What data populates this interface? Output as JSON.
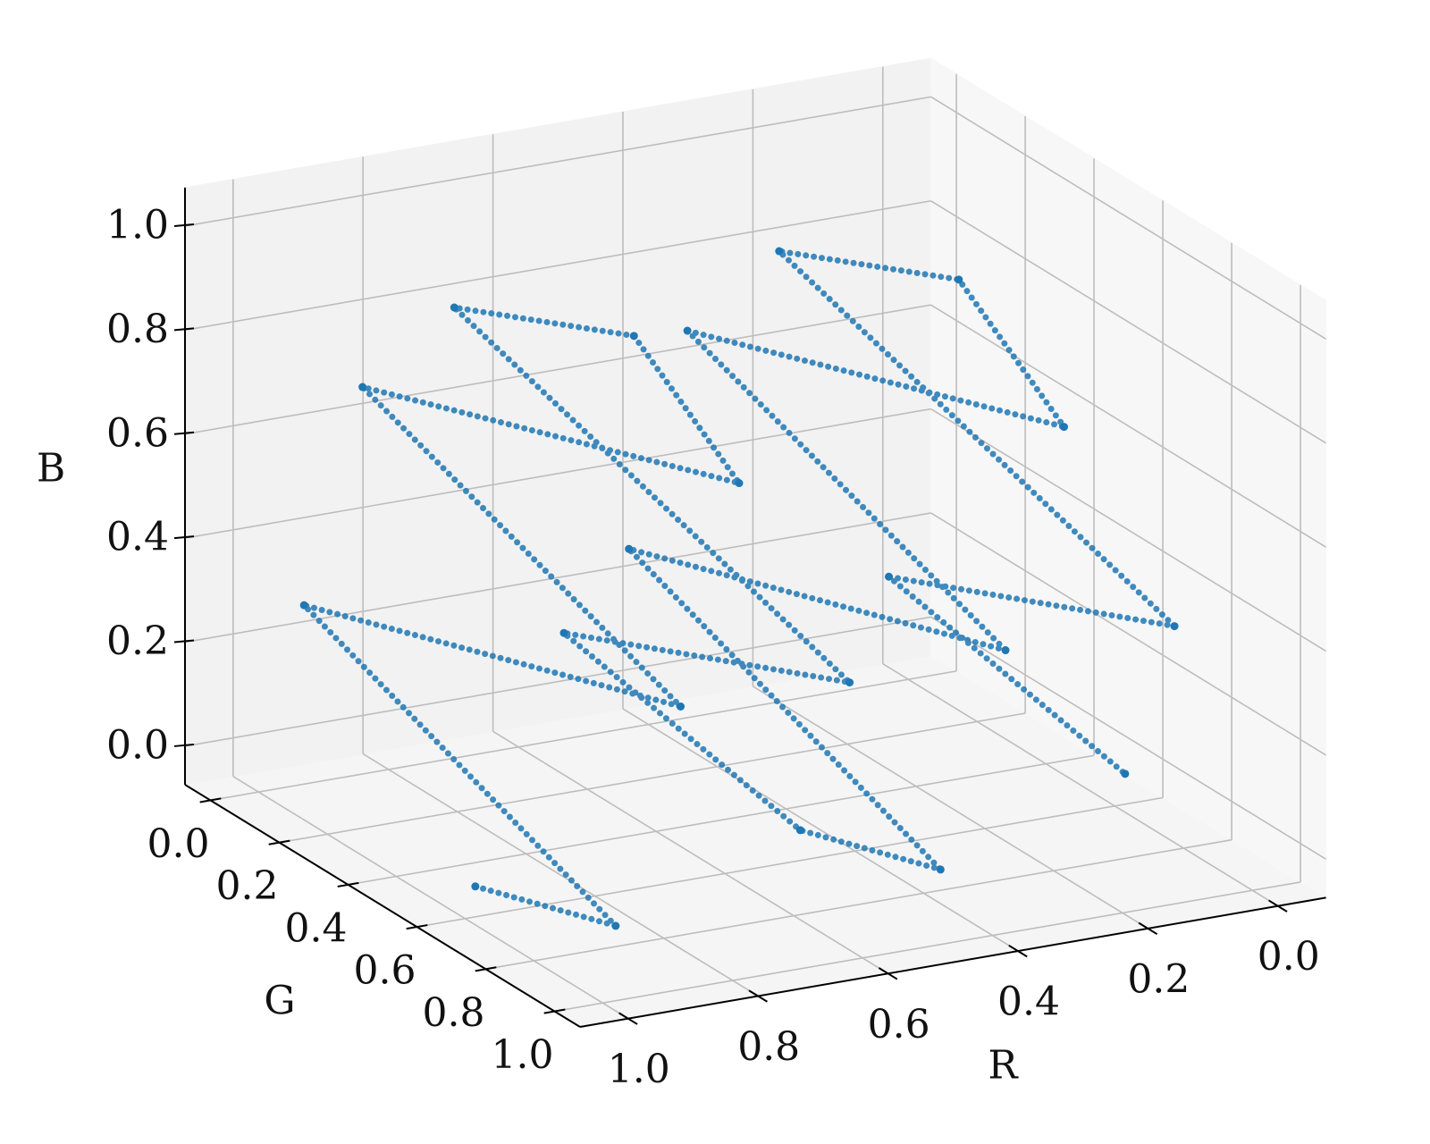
{
  "chart_data": {
    "type": "scatter3d",
    "xlabel": "R",
    "ylabel": "G",
    "zlabel": "B",
    "color": "#1f77b4",
    "grid": true,
    "x": [
      1.0,
      0.98,
      0.93,
      0.88,
      0.84,
      0.79,
      0.74,
      0.9,
      0.62,
      0.53,
      0.5,
      0.48,
      0.43,
      0.38,
      0.34,
      0.29,
      0.24,
      0.4,
      0.12,
      0.03,
      0.0
    ],
    "y": [
      0.63,
      1.0,
      0.0,
      1.0,
      0.0,
      1.0,
      0.6,
      0.38,
      1.0,
      0.0,
      0.63,
      1.0,
      0.0,
      1.0,
      0.0,
      1.0,
      0.6,
      0.38,
      1.0,
      0.0,
      0.63
    ],
    "z": [
      0.0,
      0.07,
      0.27,
      0.47,
      0.67,
      0.88,
      0.99,
      0.99,
      0.46,
      0.13,
      0.0,
      0.07,
      0.27,
      0.47,
      0.67,
      0.88,
      0.99,
      0.99,
      0.46,
      0.13,
      0.0
    ],
    "xlim": [
      -0.074,
      1.074
    ],
    "ylim": [
      -0.074,
      1.074
    ],
    "zlim": [
      -0.074,
      1.074
    ],
    "xticks": [
      {
        "value": 0,
        "label": "0.0"
      },
      0.2,
      0.4,
      0.6,
      0.8,
      {
        "value": 1,
        "label": "1.0"
      }
    ],
    "yticks": [
      {
        "value": 0,
        "label": "0.0"
      },
      0.2,
      0.4,
      0.6,
      0.8,
      {
        "value": 1,
        "label": "1.0"
      }
    ],
    "zticks": [
      {
        "value": 0,
        "label": "0.0"
      },
      0.2,
      0.4,
      0.6,
      0.8,
      {
        "value": 1,
        "label": "1.0"
      }
    ]
  }
}
